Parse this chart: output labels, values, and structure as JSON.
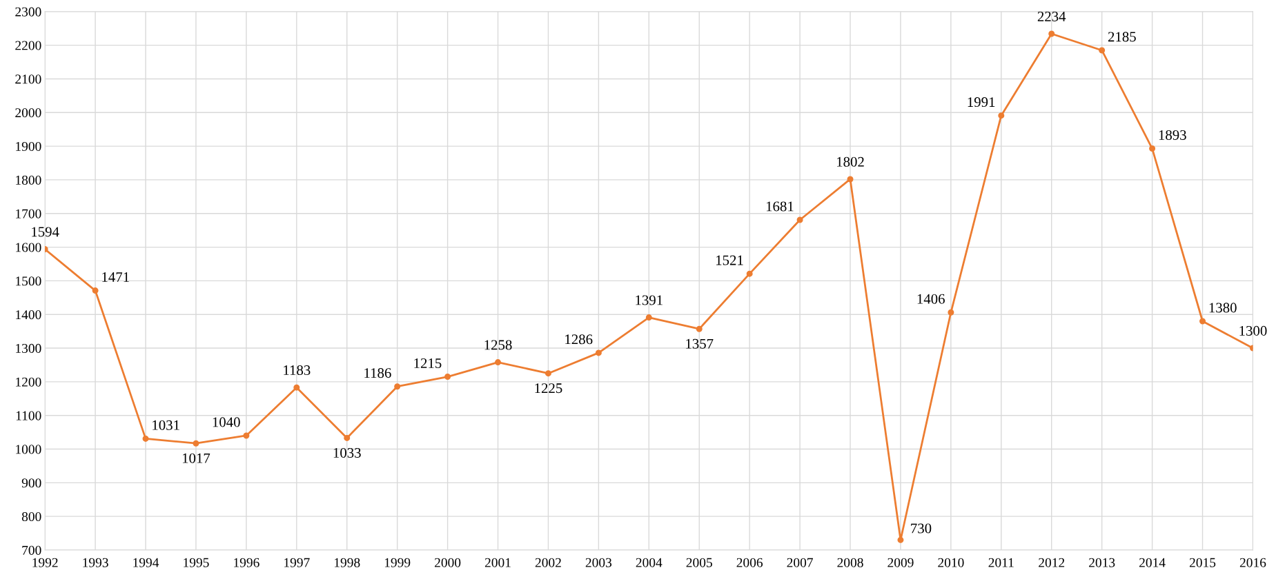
{
  "chart_data": {
    "type": "line",
    "categories": [
      "1992",
      "1993",
      "1994",
      "1995",
      "1996",
      "1997",
      "1998",
      "1999",
      "2000",
      "2001",
      "2002",
      "2003",
      "2004",
      "2005",
      "2006",
      "2007",
      "2008",
      "2009",
      "2010",
      "2011",
      "2012",
      "2013",
      "2014",
      "2015",
      "2016"
    ],
    "series": [
      {
        "color": "#ed7d31",
        "values": [
          1594,
          1471,
          1031,
          1017,
          1040,
          1183,
          1033,
          1186,
          1215,
          1258,
          1225,
          1286,
          1391,
          1357,
          1521,
          1681,
          1802,
          730,
          1406,
          1991,
          2234,
          2185,
          1893,
          1380,
          1300
        ]
      }
    ],
    "ylim": [
      700,
      2300
    ],
    "yticks": [
      700,
      800,
      900,
      1000,
      1100,
      1200,
      1300,
      1400,
      1500,
      1600,
      1700,
      1800,
      1900,
      2000,
      2100,
      2200,
      2300
    ],
    "grid": true,
    "marker": "circle",
    "line_style": "solid",
    "data_labels": true
  }
}
